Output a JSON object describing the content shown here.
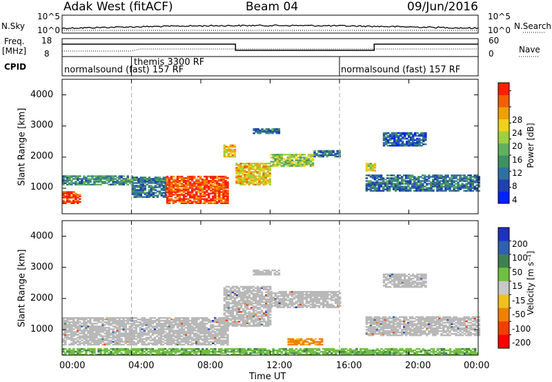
{
  "header": {
    "station": "Adak West (fitACF)",
    "beam": "Beam 04",
    "date": "09/Jun/2016"
  },
  "panel_labels": {
    "nsky": "N.Sky",
    "nsearch": "N.Search",
    "freq_line1": "Freq.",
    "freq_line2": "[MHz]",
    "nave": "Nave",
    "cpid": "CPID",
    "noise_top": "10^5",
    "noise_bottom": "10^0",
    "freq_top": "18",
    "freq_bottom": "8",
    "nave_top": "60",
    "nave_bottom": "0"
  },
  "cpid_modes": [
    {
      "label": "normalsound (fast) 157 RF",
      "start_hour": 0
    },
    {
      "label": "themis 3300 RF",
      "start_hour": 4
    },
    {
      "label": "normalsound (fast) 157 RF",
      "start_hour": 16
    }
  ],
  "colors": {
    "power_scale": [
      "#0020ff",
      "#2040b0",
      "#3070a0",
      "#409060",
      "#60b060",
      "#a0d040",
      "#f0d020",
      "#f0a000",
      "#f06000",
      "#ff2000"
    ],
    "velocity_scale": [
      "#2030c0",
      "#3060b0",
      "#408050",
      "#70c040",
      "#c8c8c8",
      "#f0c020",
      "#f08000",
      "#f04000",
      "#ff0000"
    ],
    "ground_scatter": "#b8b8b8"
  },
  "chart_data": [
    {
      "type": "heatmap",
      "title": "",
      "xlabel": "Time UT",
      "ylabel": "Slant Range [km]",
      "ylim": [
        180,
        4500
      ],
      "xlim": [
        0,
        24
      ],
      "x_ticks": [
        "00:00",
        "04:00",
        "08:00",
        "12:00",
        "16:00",
        "20:00",
        "00:00"
      ],
      "y_ticks": [
        1000,
        2000,
        3000,
        4000
      ],
      "colorbar_label": "Power [dB]",
      "colorbar_ticks": [
        4,
        8,
        12,
        16,
        20,
        24,
        28
      ],
      "colorbar_range": [
        0,
        30
      ],
      "regions": [
        {
          "t": [
            0,
            1
          ],
          "r": [
            500,
            900
          ],
          "value": 28
        },
        {
          "t": [
            0,
            4
          ],
          "r": [
            1100,
            1400
          ],
          "value": 10
        },
        {
          "t": [
            3.5,
            6
          ],
          "r": [
            1150,
            1300
          ],
          "value": 12
        },
        {
          "t": [
            4,
            6
          ],
          "r": [
            700,
            1350
          ],
          "value": 8
        },
        {
          "t": [
            6,
            9.5
          ],
          "r": [
            500,
            1400
          ],
          "value": 27
        },
        {
          "t": [
            9.3,
            10
          ],
          "r": [
            2000,
            2400
          ],
          "value": 20
        },
        {
          "t": [
            10,
            12
          ],
          "r": [
            1100,
            1800
          ],
          "value": 20
        },
        {
          "t": [
            12,
            14.5
          ],
          "r": [
            1700,
            2100
          ],
          "value": 16
        },
        {
          "t": [
            14.5,
            16
          ],
          "r": [
            2000,
            2200
          ],
          "value": 8
        },
        {
          "t": [
            11,
            12.5
          ],
          "r": [
            2750,
            2900
          ],
          "value": 8
        },
        {
          "t": [
            17.5,
            18
          ],
          "r": [
            1550,
            1800
          ],
          "value": 18
        },
        {
          "t": [
            17.5,
            24
          ],
          "r": [
            900,
            1400
          ],
          "value": 8
        },
        {
          "t": [
            18.5,
            21
          ],
          "r": [
            2350,
            2800
          ],
          "value": 6
        }
      ]
    },
    {
      "type": "heatmap",
      "title": "",
      "xlabel": "Time UT",
      "ylabel": "Slant Range [km]",
      "ylim": [
        180,
        4500
      ],
      "xlim": [
        0,
        24
      ],
      "x_ticks": [
        "00:00",
        "04:00",
        "08:00",
        "12:00",
        "16:00",
        "20:00",
        "00:00"
      ],
      "y_ticks": [
        1000,
        2000,
        3000,
        4000
      ],
      "colorbar_label": "Velocity [m s^-1]",
      "colorbar_ticks": [
        200,
        100,
        50,
        15,
        -15,
        -50,
        -100,
        -200
      ],
      "colorbar_range": [
        -250,
        250
      ],
      "regions": [
        {
          "t": [
            0,
            9.5
          ],
          "r": [
            500,
            1400
          ],
          "value": 0
        },
        {
          "t": [
            9.3,
            12
          ],
          "r": [
            1100,
            2400
          ],
          "value": 0
        },
        {
          "t": [
            12,
            16
          ],
          "r": [
            1700,
            2200
          ],
          "value": 0
        },
        {
          "t": [
            11,
            12.5
          ],
          "r": [
            2750,
            2900
          ],
          "value": 0
        },
        {
          "t": [
            17.5,
            24
          ],
          "r": [
            800,
            1400
          ],
          "value": 0
        },
        {
          "t": [
            18.5,
            21
          ],
          "r": [
            2350,
            2800
          ],
          "value": 0
        },
        {
          "t": [
            13,
            15
          ],
          "r": [
            500,
            700
          ],
          "value": -60
        },
        {
          "t": [
            0,
            24
          ],
          "r": [
            180,
            380
          ],
          "value": 40
        }
      ]
    }
  ],
  "axes": {
    "x_label": "Time UT",
    "y_label": "Slant Range [km]",
    "power_label": "Power [dB]",
    "velocity_label": "Velocity [m s⁻¹]",
    "y_tick_labels": [
      "1000",
      "2000",
      "3000",
      "4000"
    ],
    "x_tick_labels": [
      "00:00",
      "04:00",
      "08:00",
      "12:00",
      "16:00",
      "20:00",
      "00:00"
    ],
    "power_tick_labels": [
      "28",
      "24",
      "20",
      "16",
      "12",
      "8",
      "4"
    ],
    "velocity_tick_labels": [
      "200",
      "100",
      "50",
      "15",
      "-15",
      "-50",
      "-100",
      "-200"
    ]
  }
}
